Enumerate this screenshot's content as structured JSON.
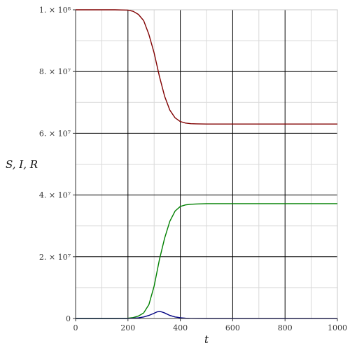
{
  "chart_data": {
    "type": "line",
    "title": "",
    "xlabel": "t",
    "ylabel": "S, I, R",
    "xlim": [
      0,
      1000
    ],
    "ylim": [
      0,
      100000000
    ],
    "grid": true,
    "legend": "none",
    "x_ticks": [
      {
        "value": 0,
        "label": "0"
      },
      {
        "value": 200,
        "label": "200"
      },
      {
        "value": 400,
        "label": "400"
      },
      {
        "value": 600,
        "label": "600"
      },
      {
        "value": 800,
        "label": "800"
      },
      {
        "value": 1000,
        "label": "1000"
      }
    ],
    "y_ticks": [
      {
        "value": 0,
        "label": "0"
      },
      {
        "value": 20000000,
        "label": "2. × 10⁷"
      },
      {
        "value": 40000000,
        "label": "4. × 10⁷"
      },
      {
        "value": 60000000,
        "label": "6. × 10⁷"
      },
      {
        "value": 80000000,
        "label": "8. × 10⁷"
      },
      {
        "value": 100000000,
        "label": "1. × 10⁸"
      }
    ],
    "series": [
      {
        "color": "#800000",
        "x": [
          0,
          100,
          150,
          200,
          220,
          240,
          260,
          280,
          300,
          320,
          340,
          360,
          380,
          400,
          420,
          440,
          460,
          500,
          600,
          800,
          1000
        ],
        "y": [
          100000000,
          100000000,
          100000000,
          99900000,
          99500000,
          98500000,
          96500000,
          92000000,
          86000000,
          78500000,
          72000000,
          67500000,
          65000000,
          63800000,
          63300000,
          63100000,
          63050000,
          63000000,
          63000000,
          63000000,
          63000000
        ]
      },
      {
        "color": "#008000",
        "x": [
          0,
          100,
          150,
          200,
          220,
          240,
          260,
          280,
          300,
          320,
          340,
          360,
          380,
          400,
          420,
          440,
          460,
          500,
          600,
          800,
          1000
        ],
        "y": [
          0,
          0,
          0,
          100000,
          300000,
          800000,
          1800000,
          4500000,
          10500000,
          19000000,
          26000000,
          31500000,
          34800000,
          36300000,
          36800000,
          37000000,
          37100000,
          37200000,
          37200000,
          37200000,
          37200000
        ]
      },
      {
        "color": "#000080",
        "x": [
          0,
          100,
          200,
          220,
          240,
          260,
          280,
          300,
          310,
          320,
          330,
          340,
          360,
          380,
          400,
          420,
          440,
          500,
          600,
          800,
          1000
        ],
        "y": [
          0,
          0,
          0,
          100000,
          200000,
          500000,
          1000000,
          1700000,
          2100000,
          2300000,
          2100000,
          1800000,
          1000000,
          500000,
          250000,
          100000,
          50000,
          0,
          0,
          0,
          0
        ]
      }
    ]
  }
}
